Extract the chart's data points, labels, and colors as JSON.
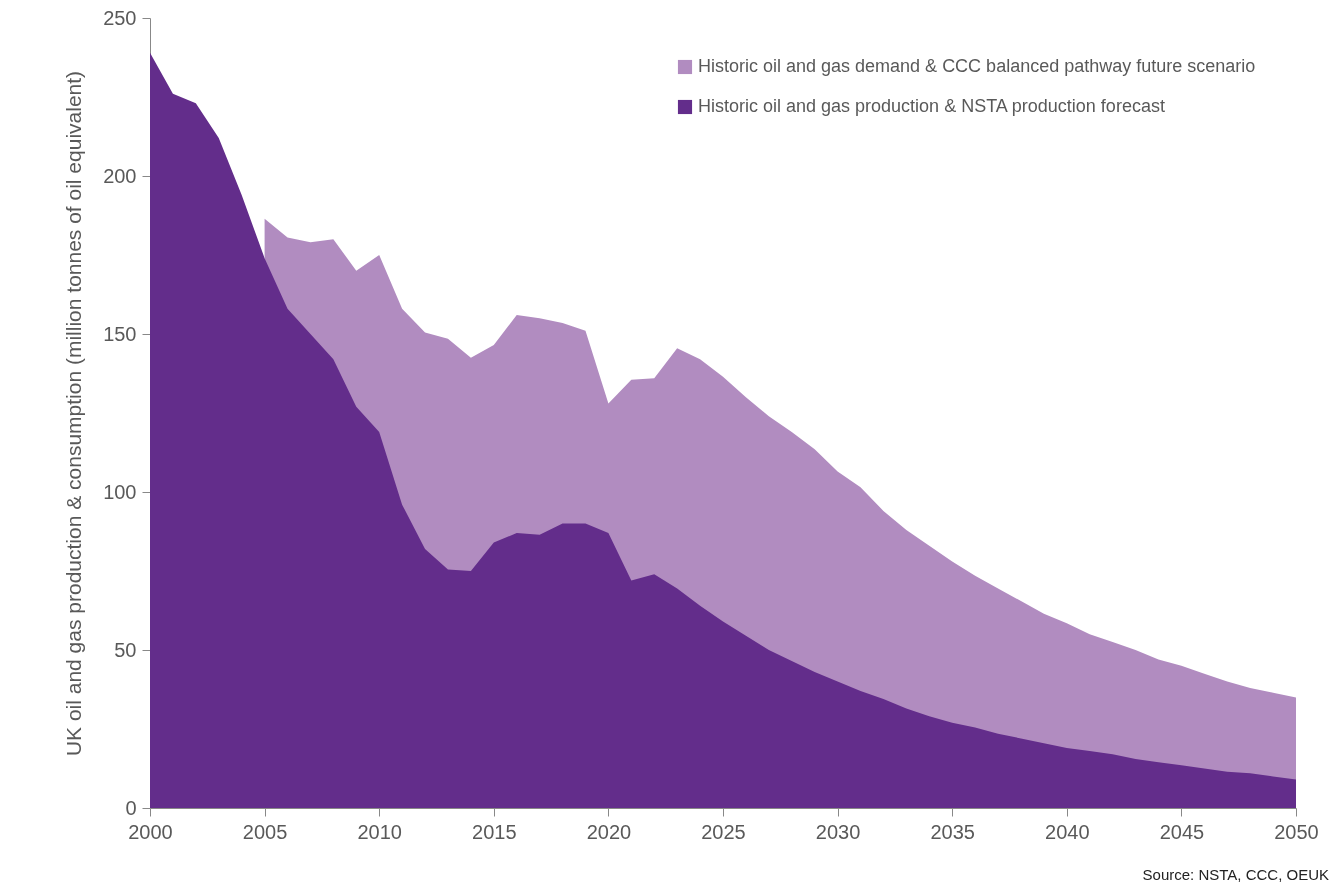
{
  "chart_data": {
    "type": "area",
    "ylabel": "UK oil and gas production & consumption (million tonnes of oil equivalent)",
    "x": [
      2000,
      2001,
      2002,
      2003,
      2004,
      2005,
      2006,
      2007,
      2008,
      2009,
      2010,
      2011,
      2012,
      2013,
      2014,
      2015,
      2016,
      2017,
      2018,
      2019,
      2020,
      2021,
      2022,
      2023,
      2024,
      2025,
      2026,
      2027,
      2028,
      2029,
      2030,
      2031,
      2032,
      2033,
      2034,
      2035,
      2036,
      2037,
      2038,
      2039,
      2040,
      2041,
      2042,
      2043,
      2044,
      2045,
      2046,
      2047,
      2048,
      2049,
      2050
    ],
    "series": [
      {
        "name": "Historic oil and gas demand & CCC balanced pathway future scenario",
        "color": "#b18cc0",
        "values": [
          null,
          null,
          null,
          null,
          null,
          186.5,
          180.5,
          179,
          180,
          170,
          175,
          158,
          150.5,
          148.5,
          142.5,
          146.5,
          156,
          155,
          153.5,
          151,
          128,
          135.5,
          136,
          145.5,
          142,
          136.5,
          130,
          124,
          119,
          113.5,
          106.5,
          101.5,
          94,
          88,
          83,
          78,
          73.5,
          69.5,
          65.5,
          61.5,
          58.5,
          55,
          52.5,
          50,
          47,
          45,
          42.5,
          40,
          38,
          36.5,
          35
        ]
      },
      {
        "name": "Historic oil and gas production  & NSTA production forecast",
        "color": "#632d8b",
        "values": [
          239,
          226,
          223,
          212,
          194,
          174,
          158,
          150,
          142,
          127,
          119,
          96,
          82,
          75.5,
          75,
          84,
          87,
          86.5,
          90,
          90,
          87,
          72,
          74,
          69.5,
          64,
          59,
          54.5,
          50,
          46.5,
          43,
          40,
          37,
          34.5,
          31.5,
          29,
          27,
          25.5,
          23.5,
          22,
          20.5,
          19,
          18,
          17,
          15.5,
          14.5,
          13.5,
          12.5,
          11.5,
          11,
          10,
          9
        ]
      }
    ],
    "xlim": [
      2000,
      2050
    ],
    "xticks": [
      2000,
      2005,
      2010,
      2015,
      2020,
      2025,
      2030,
      2035,
      2040,
      2045,
      2050
    ],
    "ylim": [
      0,
      250
    ],
    "yticks": [
      0,
      50,
      100,
      150,
      200,
      250
    ],
    "legend": "top right",
    "annotations": [
      "Source: NSTA, CCC, OEUK"
    ]
  }
}
